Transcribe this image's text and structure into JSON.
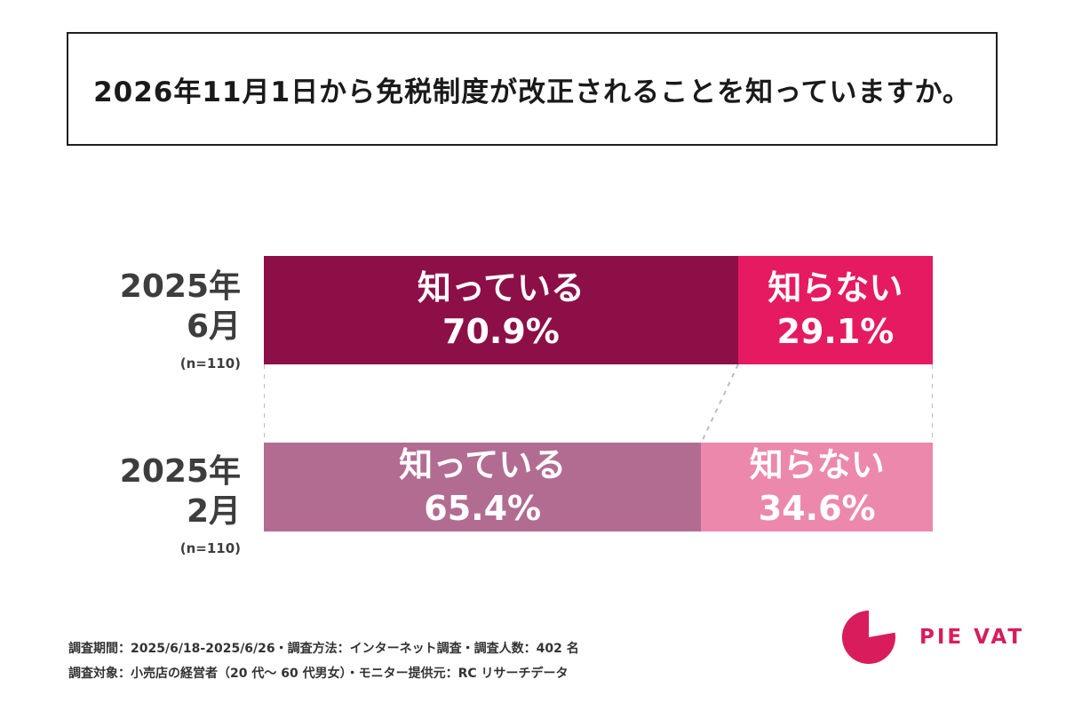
{
  "title": "2026年11月1日から免税制度が改正されることを知っていますか。",
  "chart_data": {
    "type": "bar",
    "subtype": "horizontal-stacked-comparison",
    "unit": "%",
    "xlim": [
      0,
      100
    ],
    "legend": [
      "知っている",
      "知らない"
    ],
    "rows": [
      {
        "period_line1": "2025年",
        "period_line2": "6月",
        "sample": "(n=110)",
        "segments": [
          {
            "name": "知っている",
            "value": 70.9,
            "display": "70.9%",
            "color": "#8D0F47"
          },
          {
            "name": "知らない",
            "value": 29.1,
            "display": "29.1%",
            "color": "#E61A60"
          }
        ]
      },
      {
        "period_line1": "2025年",
        "period_line2": "2月",
        "sample": "(n=110)",
        "segments": [
          {
            "name": "知っている",
            "value": 65.4,
            "display": "65.4%",
            "color": "#B26C92"
          },
          {
            "name": "知らない",
            "value": 34.6,
            "display": "34.6%",
            "color": "#EC88AC"
          }
        ]
      }
    ],
    "connector_lines": "dashed"
  },
  "footer": {
    "line1": "調査期間：2025/6/18-2025/6/26・調査方法：インターネット調査・調査人数：402 名",
    "line2": "調査対象：小売店の経営者（20 代～ 60 代男女）・モニター提供元：RC リサーチデータ"
  },
  "logo": {
    "text": "PIE VAT",
    "color": "#D81C5C"
  }
}
